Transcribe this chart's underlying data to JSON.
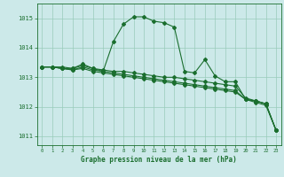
{
  "title": "Graphe pression niveau de la mer (hPa)",
  "xlabel": "Graphe pression niveau de la mer (hPa)",
  "xlim": [
    -0.5,
    23.5
  ],
  "ylim": [
    1010.7,
    1015.5
  ],
  "yticks": [
    1011,
    1012,
    1013,
    1014,
    1015
  ],
  "xticks": [
    0,
    1,
    2,
    3,
    4,
    5,
    6,
    7,
    8,
    9,
    10,
    11,
    12,
    13,
    14,
    15,
    16,
    17,
    18,
    19,
    20,
    21,
    22,
    23
  ],
  "bg_color": "#cce9e9",
  "grid_color": "#99ccbb",
  "line_color": "#1a6e2e",
  "series": [
    {
      "x": [
        0,
        1,
        2,
        3,
        4,
        5,
        6,
        7,
        8,
        9,
        10,
        11,
        12,
        13,
        14,
        15,
        16,
        17,
        18,
        19,
        20,
        21,
        22,
        23
      ],
      "y": [
        1013.35,
        1013.35,
        1013.35,
        1013.3,
        1013.45,
        1013.3,
        1013.2,
        1014.2,
        1014.8,
        1015.05,
        1015.05,
        1014.9,
        1014.85,
        1014.7,
        1013.2,
        1013.15,
        1013.6,
        1013.05,
        1012.85,
        1012.85,
        1012.25,
        1012.2,
        1012.1,
        1011.2
      ]
    },
    {
      "x": [
        0,
        1,
        2,
        3,
        4,
        5,
        6,
        7,
        8,
        9,
        10,
        11,
        12,
        13,
        14,
        15,
        16,
        17,
        18,
        19,
        20,
        21,
        22,
        23
      ],
      "y": [
        1013.35,
        1013.35,
        1013.3,
        1013.3,
        1013.4,
        1013.3,
        1013.25,
        1013.2,
        1013.2,
        1013.15,
        1013.1,
        1013.05,
        1013.0,
        1013.0,
        1012.95,
        1012.9,
        1012.85,
        1012.8,
        1012.75,
        1012.7,
        1012.3,
        1012.2,
        1012.1,
        1011.2
      ]
    },
    {
      "x": [
        0,
        1,
        2,
        3,
        4,
        5,
        6,
        7,
        8,
        9,
        10,
        11,
        12,
        13,
        14,
        15,
        16,
        17,
        18,
        19,
        20,
        21,
        22,
        23
      ],
      "y": [
        1013.35,
        1013.35,
        1013.3,
        1013.25,
        1013.35,
        1013.25,
        1013.2,
        1013.15,
        1013.1,
        1013.05,
        1013.0,
        1012.95,
        1012.9,
        1012.85,
        1012.8,
        1012.75,
        1012.7,
        1012.65,
        1012.6,
        1012.55,
        1012.25,
        1012.2,
        1012.1,
        1011.2
      ]
    },
    {
      "x": [
        0,
        1,
        2,
        3,
        4,
        5,
        6,
        7,
        8,
        9,
        10,
        11,
        12,
        13,
        14,
        15,
        16,
        17,
        18,
        19,
        20,
        21,
        22,
        23
      ],
      "y": [
        1013.35,
        1013.35,
        1013.3,
        1013.25,
        1013.3,
        1013.2,
        1013.15,
        1013.1,
        1013.05,
        1013.0,
        1012.95,
        1012.9,
        1012.85,
        1012.8,
        1012.75,
        1012.7,
        1012.65,
        1012.6,
        1012.55,
        1012.5,
        1012.25,
        1012.15,
        1012.05,
        1011.2
      ]
    }
  ],
  "marker": "D",
  "marker_size": 2.0,
  "linewidth": 0.8
}
